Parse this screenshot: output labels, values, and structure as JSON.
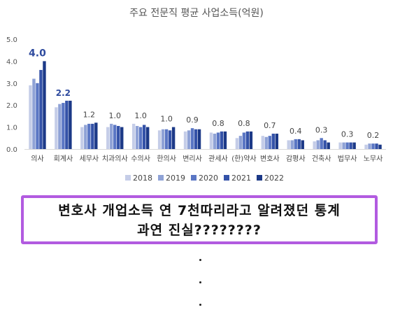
{
  "chart_data": {
    "type": "bar",
    "title": "주요 전문직 평균 사업소득(억원)",
    "categories": [
      "의사",
      "회계사",
      "세무사",
      "치과의사",
      "수의사",
      "한의사",
      "변리사",
      "관세사",
      "(한)약사",
      "변호사",
      "감평사",
      "건축사",
      "법무사",
      "노무사"
    ],
    "series": [
      {
        "name": "2018",
        "values": [
          2.9,
          1.9,
          1.0,
          1.0,
          1.15,
          0.85,
          0.8,
          0.75,
          0.5,
          0.6,
          0.4,
          0.35,
          0.3,
          0.2
        ]
      },
      {
        "name": "2019",
        "values": [
          3.2,
          2.05,
          1.1,
          1.15,
          1.05,
          0.9,
          0.85,
          0.7,
          0.6,
          0.55,
          0.4,
          0.4,
          0.3,
          0.25
        ]
      },
      {
        "name": "2020",
        "values": [
          3.0,
          2.1,
          1.15,
          1.1,
          1.0,
          0.9,
          0.95,
          0.75,
          0.75,
          0.6,
          0.45,
          0.5,
          0.3,
          0.25
        ]
      },
      {
        "name": "2021",
        "values": [
          3.6,
          2.2,
          1.15,
          1.05,
          1.1,
          0.85,
          0.9,
          0.8,
          0.8,
          0.7,
          0.45,
          0.4,
          0.3,
          0.25
        ]
      },
      {
        "name": "2022",
        "values": [
          4.0,
          2.2,
          1.2,
          1.0,
          1.0,
          1.0,
          0.9,
          0.8,
          0.8,
          0.7,
          0.4,
          0.3,
          0.3,
          0.2
        ]
      }
    ],
    "data_labels": [
      "4.0",
      "2.2",
      "1.2",
      "1.0",
      "1.0",
      "1.0",
      "0.9",
      "0.8",
      "0.8",
      "0.7",
      "0.4",
      "0.3",
      "0.3",
      "0.2"
    ],
    "y_ticks": [
      "0.0",
      "1.0",
      "2.0",
      "3.0",
      "4.0",
      "5.0"
    ],
    "ylim": [
      0,
      5
    ],
    "grid": false,
    "legend_position": "bottom-center",
    "colors": [
      "#c5cde8",
      "#8fa2d6",
      "#5a76c4",
      "#3452a8",
      "#1c3987"
    ]
  },
  "callout": {
    "line1": "변호사 개업소득 연 7천따리라고 알려졌던 통계",
    "line2": "과연 진실????????",
    "border_color": "#b25be0"
  }
}
